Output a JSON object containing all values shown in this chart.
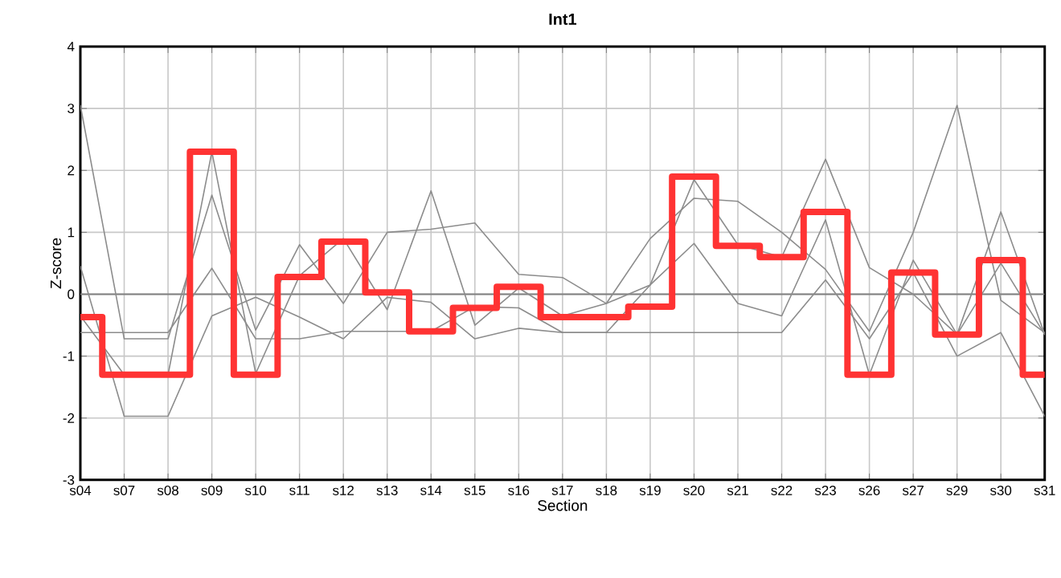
{
  "chart_data": {
    "type": "line",
    "title": "Int1",
    "xlabel": "Section",
    "ylabel": "Z-score",
    "categories": [
      "s04",
      "s07",
      "s08",
      "s09",
      "s10",
      "s11",
      "s12",
      "s13",
      "s14",
      "s15",
      "s16",
      "s17",
      "s18",
      "s19",
      "s20",
      "s21",
      "s22",
      "s23",
      "s26",
      "s27",
      "s29",
      "s30",
      "s31"
    ],
    "ylim": [
      -3,
      4
    ],
    "yticks": [
      -3,
      -2,
      -1,
      0,
      1,
      2,
      3,
      4
    ],
    "grid": true,
    "marker": "none",
    "line_style": "solid",
    "ref_lines": [
      {
        "axis": "y",
        "value": 0,
        "color": "#808080"
      }
    ],
    "series": [
      {
        "color": "#8c8c8c",
        "values": [
          3.05,
          -0.72,
          -0.72,
          1.6,
          -0.58,
          0.8,
          -0.15,
          1.0,
          1.05,
          1.15,
          0.32,
          0.27,
          -0.15,
          0.9,
          1.55,
          1.5,
          1.0,
          0.4,
          -0.6,
          1.0,
          3.05,
          -0.1,
          -0.62
        ]
      },
      {
        "color": "#8c8c8c",
        "values": [
          0.45,
          -1.97,
          -1.97,
          -0.35,
          -0.05,
          -0.37,
          -0.72,
          -0.05,
          -0.13,
          -0.72,
          -0.55,
          -0.62,
          -0.62,
          -0.62,
          -0.62,
          -0.62,
          -0.62,
          0.23,
          -0.72,
          0.35,
          -1.0,
          -0.62,
          -1.97
        ]
      },
      {
        "color": "#8c8c8c",
        "values": [
          -0.62,
          -0.62,
          -0.62,
          0.42,
          -0.72,
          -0.72,
          -0.6,
          -0.6,
          -0.6,
          -0.2,
          -0.22,
          -0.62,
          -0.62,
          0.15,
          0.82,
          -0.15,
          -0.35,
          1.2,
          -1.3,
          0.55,
          -0.65,
          0.5,
          -0.65
        ]
      },
      {
        "color": "#8c8c8c",
        "values": [
          -0.35,
          -1.3,
          -1.3,
          2.3,
          -1.28,
          0.3,
          0.9,
          -0.25,
          1.67,
          -0.5,
          0.1,
          -0.35,
          -0.15,
          0.15,
          1.85,
          0.8,
          0.6,
          2.18,
          0.43,
          0.0,
          -0.65,
          1.33,
          -0.65
        ]
      },
      {
        "type": "step",
        "color": "#ff3333",
        "values": [
          -0.37,
          -1.3,
          -1.3,
          2.3,
          -1.3,
          0.28,
          0.85,
          0.03,
          -0.6,
          -0.22,
          0.12,
          -0.37,
          -0.37,
          -0.2,
          1.9,
          0.78,
          0.6,
          1.33,
          -1.3,
          0.35,
          -0.65,
          0.55,
          -1.3
        ]
      }
    ]
  }
}
